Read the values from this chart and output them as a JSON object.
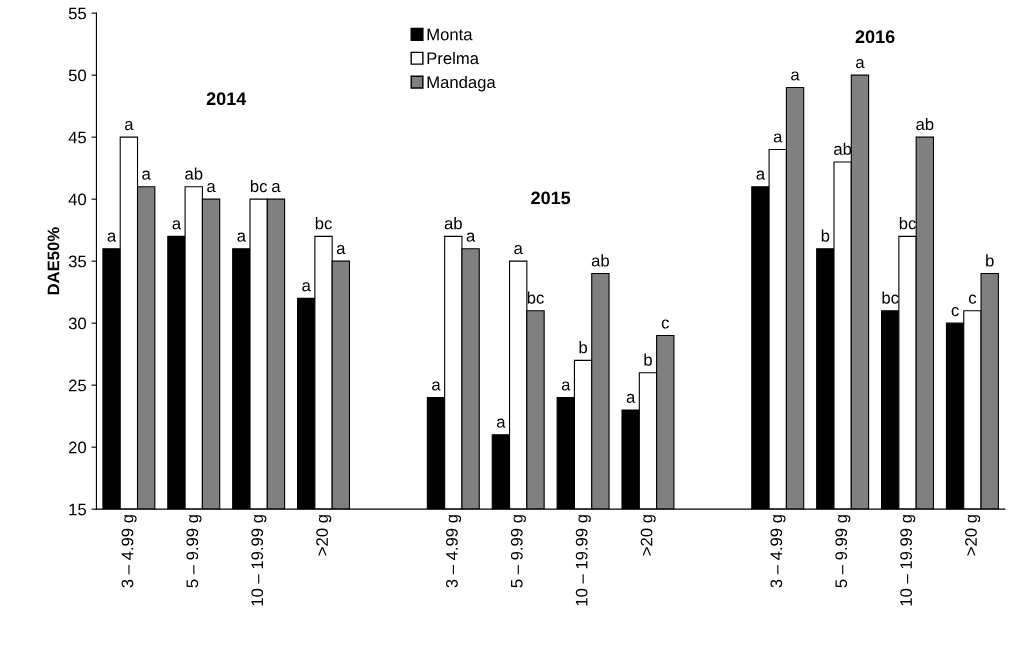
{
  "chart_data": {
    "type": "bar",
    "ylabel": "DAE50%",
    "categories": [
      "3 – 4.99 g",
      "5 – 9.99 g",
      "10 – 19.99 g",
      ">20 g",
      null,
      "3 – 4.99 g",
      "5 – 9.99 g",
      "10 – 19.99 g",
      ">20 g",
      null,
      "3 – 4.99 g",
      "5 – 9.99 g",
      "10 – 19.99 g",
      ">20 g"
    ],
    "series": [
      {
        "name": "Monta",
        "color": "#000000",
        "values": [
          36,
          37,
          36,
          32,
          null,
          24,
          21,
          24,
          23,
          null,
          41,
          36,
          31,
          30
        ],
        "value_labels": [
          "a",
          "a",
          "a",
          "a",
          null,
          "a",
          "a",
          "a",
          "a",
          null,
          "a",
          "b",
          "bc",
          "c"
        ]
      },
      {
        "name": "Prelma",
        "color": "#ffffff",
        "values": [
          45,
          41,
          40,
          37,
          null,
          37,
          35,
          27,
          26,
          null,
          44,
          43,
          37,
          31
        ],
        "value_labels": [
          "a",
          "ab",
          "bc",
          "bc",
          null,
          "ab",
          "a",
          "b",
          "b",
          null,
          "a",
          "ab",
          "bc",
          "c"
        ]
      },
      {
        "name": "Mandaga",
        "color": "#808080",
        "values": [
          41,
          40,
          40,
          35,
          null,
          36,
          31,
          34,
          29,
          null,
          49,
          50,
          45,
          34
        ],
        "value_labels": [
          "a",
          "a",
          "a",
          "a",
          null,
          "a",
          "bc",
          "ab",
          "c",
          null,
          "a",
          "a",
          "ab",
          "b"
        ]
      }
    ],
    "annotations": [
      "2014",
      "2015",
      "2016"
    ],
    "ylim": [
      15,
      55
    ],
    "yticks": [
      15,
      20,
      25,
      30,
      35,
      40,
      45,
      50,
      55
    ],
    "grid": false,
    "legend": "top"
  }
}
